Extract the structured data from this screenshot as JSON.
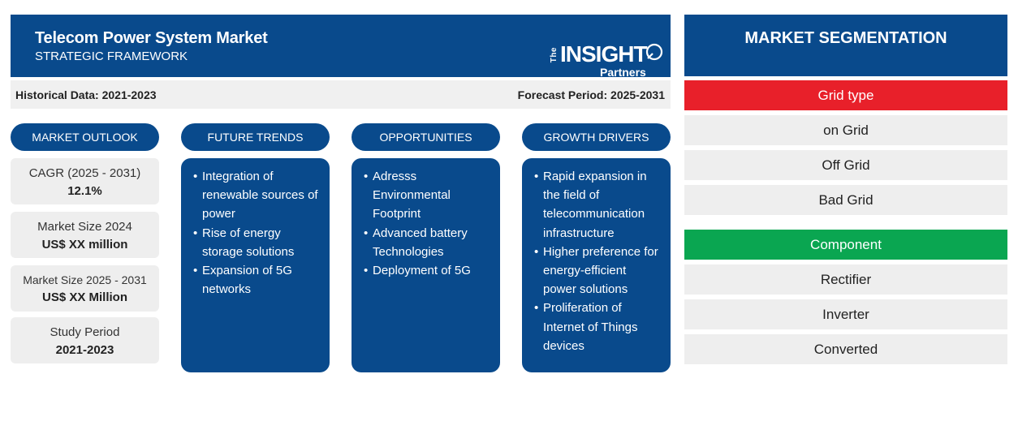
{
  "header": {
    "title": "Telecom Power System Market",
    "subtitle": "STRATEGIC FRAMEWORK"
  },
  "logo": {
    "the": "The",
    "insight": "INSIGHT",
    "partners": "Partners"
  },
  "data_bar": {
    "historical": "Historical Data: 2021-2023",
    "forecast": "Forecast Period: 2025-2031"
  },
  "columns": {
    "outlook": {
      "title": "MARKET OUTLOOK"
    },
    "trends": {
      "title": "FUTURE TRENDS",
      "items": [
        "Integration of renewable sources of power",
        "Rise of energy storage solutions",
        "Expansion of 5G networks"
      ]
    },
    "opportunities": {
      "title": "OPPORTUNITIES",
      "items": [
        "Adresss Environmental Footprint",
        "Advanced battery Technologies",
        "Deployment of 5G"
      ]
    },
    "drivers": {
      "title": "GROWTH DRIVERS",
      "items": [
        "Rapid expansion in the field of telecommunication infrastructure",
        "Higher preference for energy-efficient power solutions",
        "Proliferation of Internet of Things devices"
      ]
    }
  },
  "outlook_stats": [
    {
      "label": "CAGR (2025 - 2031)",
      "value": "12.1%"
    },
    {
      "label": "Market Size 2024",
      "value": "US$ XX million"
    },
    {
      "label": "Market Size 2025 - 2031",
      "value": "US$ XX Million"
    },
    {
      "label": "Study Period",
      "value": "2021-2023"
    }
  ],
  "segmentation": {
    "title": "MARKET SEGMENTATION",
    "groups": [
      {
        "name": "Grid type",
        "color": "#e8202a",
        "items": [
          "on Grid",
          "Off Grid",
          "Bad Grid"
        ]
      },
      {
        "name": "Component",
        "color": "#0aa651",
        "items": [
          "Rectifier",
          "Inverter",
          "Converted"
        ]
      }
    ]
  }
}
